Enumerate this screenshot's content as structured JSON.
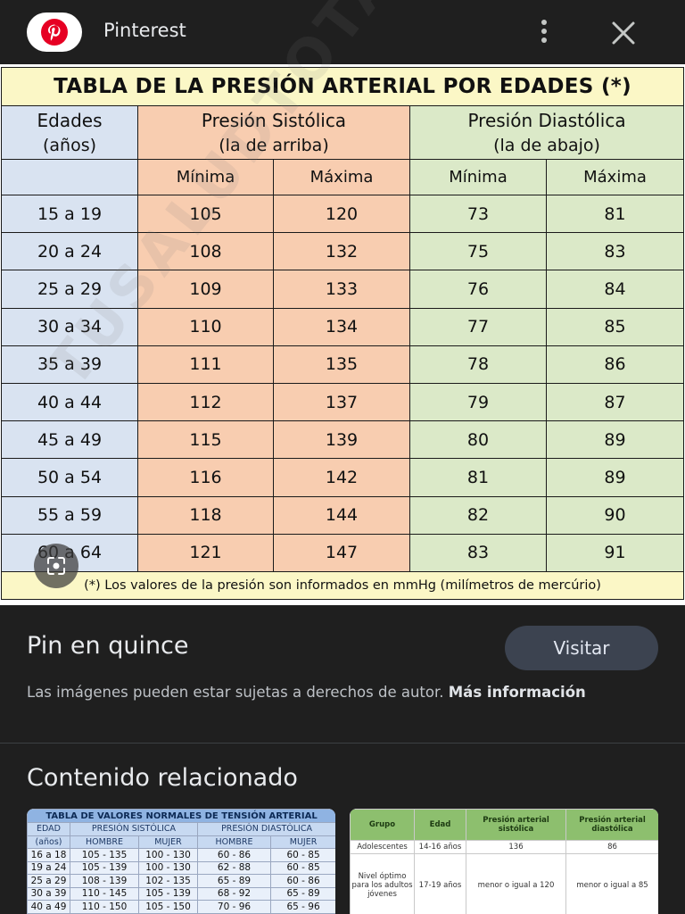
{
  "header": {
    "site_name": "Pinterest",
    "logo_icon": "pinterest-logo-icon",
    "menu_icon": "more-vert-icon",
    "close_icon": "close-icon"
  },
  "pin_image": {
    "title": "TABLA DE LA PRESIÓN ARTERIAL POR EDADES (*)",
    "col_age": [
      "Edades",
      "(años)"
    ],
    "col_sys": [
      "Presión Sistólica",
      "(la de arriba)"
    ],
    "col_dia": [
      "Presión Diastólica",
      "(la de abajo)"
    ],
    "sub_headers": [
      "Mínima",
      "Máxima",
      "Mínima",
      "Máxima"
    ],
    "rows": [
      [
        "15 a 19",
        "105",
        "120",
        "73",
        "81"
      ],
      [
        "20 a 24",
        "108",
        "132",
        "75",
        "83"
      ],
      [
        "25 a 29",
        "109",
        "133",
        "76",
        "84"
      ],
      [
        "30 a 34",
        "110",
        "134",
        "77",
        "85"
      ],
      [
        "35 a 39",
        "111",
        "135",
        "78",
        "86"
      ],
      [
        "40 a 44",
        "112",
        "137",
        "79",
        "87"
      ],
      [
        "45 a 49",
        "115",
        "139",
        "80",
        "89"
      ],
      [
        "50 a 54",
        "116",
        "142",
        "81",
        "89"
      ],
      [
        "55 a 59",
        "118",
        "144",
        "82",
        "90"
      ],
      [
        "60 a 64",
        "121",
        "147",
        "83",
        "91"
      ]
    ],
    "footnote": "(*) Los valores de la presión son informados en mmHg (milímetros de mercúrio)",
    "watermark": "TUSALUDTOTAL.COM",
    "lens_icon": "google-lens-icon",
    "colors": {
      "title_bg": "#fbf7c6",
      "age_bg": "#d9e3f1",
      "sys_bg": "#f8cdb0",
      "dia_bg": "#dbe9c8"
    }
  },
  "pin": {
    "title": "Pin en quince",
    "visit_label": "Visitar",
    "copyright_text": "Las imágenes pueden estar sujetas a derechos de autor.",
    "more_info_label": "Más información"
  },
  "related": {
    "title": "Contenido relacionado",
    "thumb1": {
      "title": "TABLA DE VALORES NORMALES DE TENSIÓN ARTERIAL",
      "h1": [
        "EDAD",
        "PRESIÓN SISTÓLICA",
        "PRESIÓN DIASTÓLICA"
      ],
      "h2": [
        "(años)",
        "HOMBRE",
        "MUJER",
        "HOMBRE",
        "MUJER"
      ],
      "rows": [
        [
          "16 a 18",
          "105 - 135",
          "100 - 130",
          "60 - 86",
          "60 - 85"
        ],
        [
          "19 a 24",
          "105 - 139",
          "100 - 130",
          "62 - 88",
          "60 - 85"
        ],
        [
          "25 a 29",
          "108 - 139",
          "102 - 135",
          "65 - 89",
          "60 - 86"
        ],
        [
          "30 a 39",
          "110 - 145",
          "105 - 139",
          "68 - 92",
          "65 - 89"
        ],
        [
          "40 a 49",
          "110 - 150",
          "105 - 150",
          "70 - 96",
          "65 - 96"
        ]
      ]
    },
    "thumb2": {
      "headers": [
        "Grupo",
        "Edad",
        "Presión arterial sistólica",
        "Presión arterial diastólica"
      ],
      "rows": [
        [
          "Adolescentes",
          "14-16 años",
          "136",
          "86"
        ],
        [
          "Nivel óptimo para los adultos jóvenes",
          "17-19 años",
          "menor o igual a 120",
          "menor o igual a 85"
        ]
      ]
    }
  }
}
